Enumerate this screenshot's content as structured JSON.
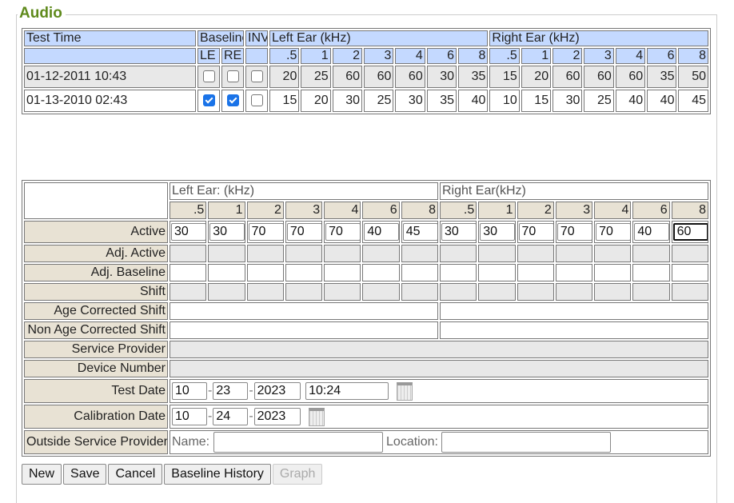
{
  "legend": "Audio",
  "history": {
    "headers": {
      "test_time": "Test Time",
      "baseline": "Baseline",
      "inv": "INV",
      "left": "Left Ear (kHz)",
      "right": "Right Ear (kHz)",
      "le": "LE",
      "re": "RE"
    },
    "freqs": [
      ".5",
      "1",
      "2",
      "3",
      "4",
      "6",
      "8"
    ],
    "rows": [
      {
        "time": "01-12-2011 10:43",
        "le": false,
        "re": false,
        "inv": false,
        "left": [
          "20",
          "25",
          "60",
          "60",
          "60",
          "30",
          "35"
        ],
        "right": [
          "15",
          "20",
          "60",
          "60",
          "60",
          "35",
          "50"
        ]
      },
      {
        "time": "01-13-2010 02:43",
        "le": true,
        "re": true,
        "inv": false,
        "left": [
          "15",
          "20",
          "30",
          "25",
          "30",
          "35",
          "40"
        ],
        "right": [
          "10",
          "15",
          "30",
          "25",
          "40",
          "40",
          "45"
        ]
      }
    ]
  },
  "form": {
    "left_header": "Left Ear: (kHz)",
    "right_header": "Right Ear(kHz)",
    "freqs": [
      ".5",
      "1",
      "2",
      "3",
      "4",
      "6",
      "8"
    ],
    "labels": {
      "active": "Active",
      "adj_active": "Adj. Active",
      "adj_baseline": "Adj. Baseline",
      "shift": "Shift",
      "age": "Age Corrected Shift",
      "nonage": "Non Age Corrected Shift",
      "service": "Service Provider",
      "device": "Device Number",
      "test_date": "Test Date",
      "cal_date": "Calibration Date",
      "outside": "Outside Service Provider",
      "name": "Name:",
      "location": "Location:"
    },
    "active_left": [
      "30",
      "30",
      "70",
      "70",
      "70",
      "40",
      "45"
    ],
    "active_right": [
      "30",
      "30",
      "70",
      "70",
      "70",
      "40",
      "60"
    ],
    "test_date": {
      "month": "10",
      "day": "23",
      "year": "2023",
      "time": "10:24"
    },
    "cal_date": {
      "month": "10",
      "day": "24",
      "year": "2023"
    },
    "dash": "-"
  },
  "buttons": {
    "new": "New",
    "save": "Save",
    "cancel": "Cancel",
    "baseline_history": "Baseline History",
    "graph": "Graph",
    "graph_disabled": true
  },
  "colors": {
    "legend": "#5f8a1c",
    "header_blue": "#c4d9ff",
    "label_tan": "#e8e2d4",
    "check": "#1a73e8"
  }
}
